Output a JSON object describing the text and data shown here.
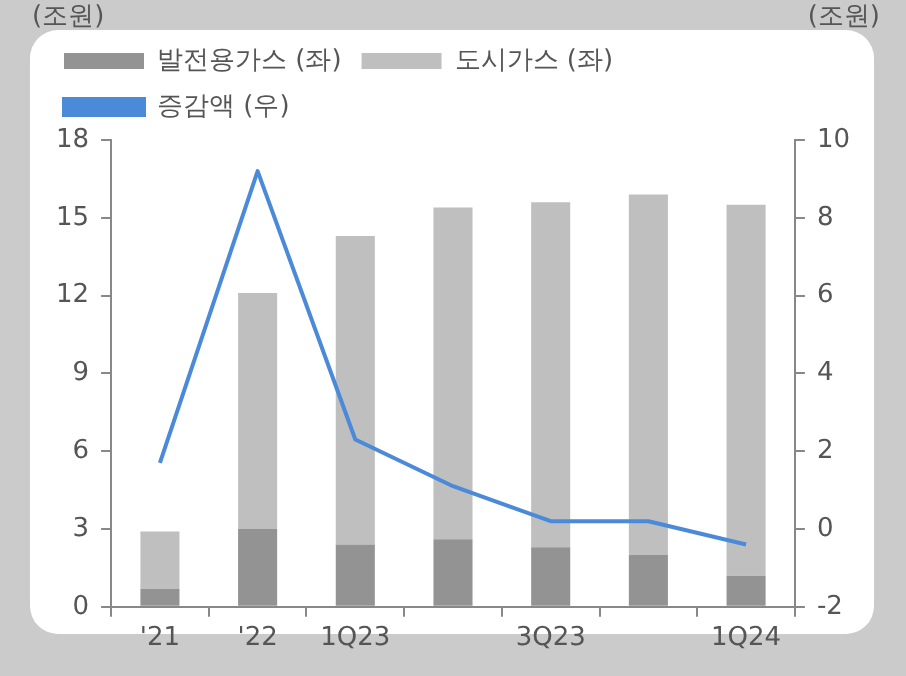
{
  "chart_data": {
    "type": "bar",
    "stacked": true,
    "ylabel": "(조원)",
    "y2label": "(조원)",
    "categories": [
      "'21",
      "'22",
      "1Q23",
      null,
      "3Q23",
      null,
      "1Q24"
    ],
    "series": [
      {
        "name": "발전용가스 (좌)",
        "color": "#939393",
        "values": [
          0.7,
          3.0,
          2.4,
          2.6,
          2.3,
          2.0,
          1.2
        ]
      },
      {
        "name": "도시가스 (좌)",
        "color": "#bfbfbf",
        "values": [
          2.2,
          9.1,
          11.9,
          12.8,
          13.3,
          13.9,
          14.3
        ]
      },
      {
        "name": "증감액 (우)",
        "type": "line",
        "axis": "y2",
        "color": "#4a8ad8",
        "values": [
          1.7,
          9.2,
          2.3,
          1.1,
          0.2,
          0.2,
          -0.4
        ]
      }
    ],
    "ylim": [
      0,
      18
    ],
    "yticks": [
      0,
      3,
      6,
      9,
      12,
      15,
      18
    ],
    "y2lim": [
      -2,
      10
    ],
    "y2ticks": [
      -2,
      0,
      2,
      4,
      6,
      8,
      10
    ],
    "legend": "top",
    "marker": "none"
  }
}
